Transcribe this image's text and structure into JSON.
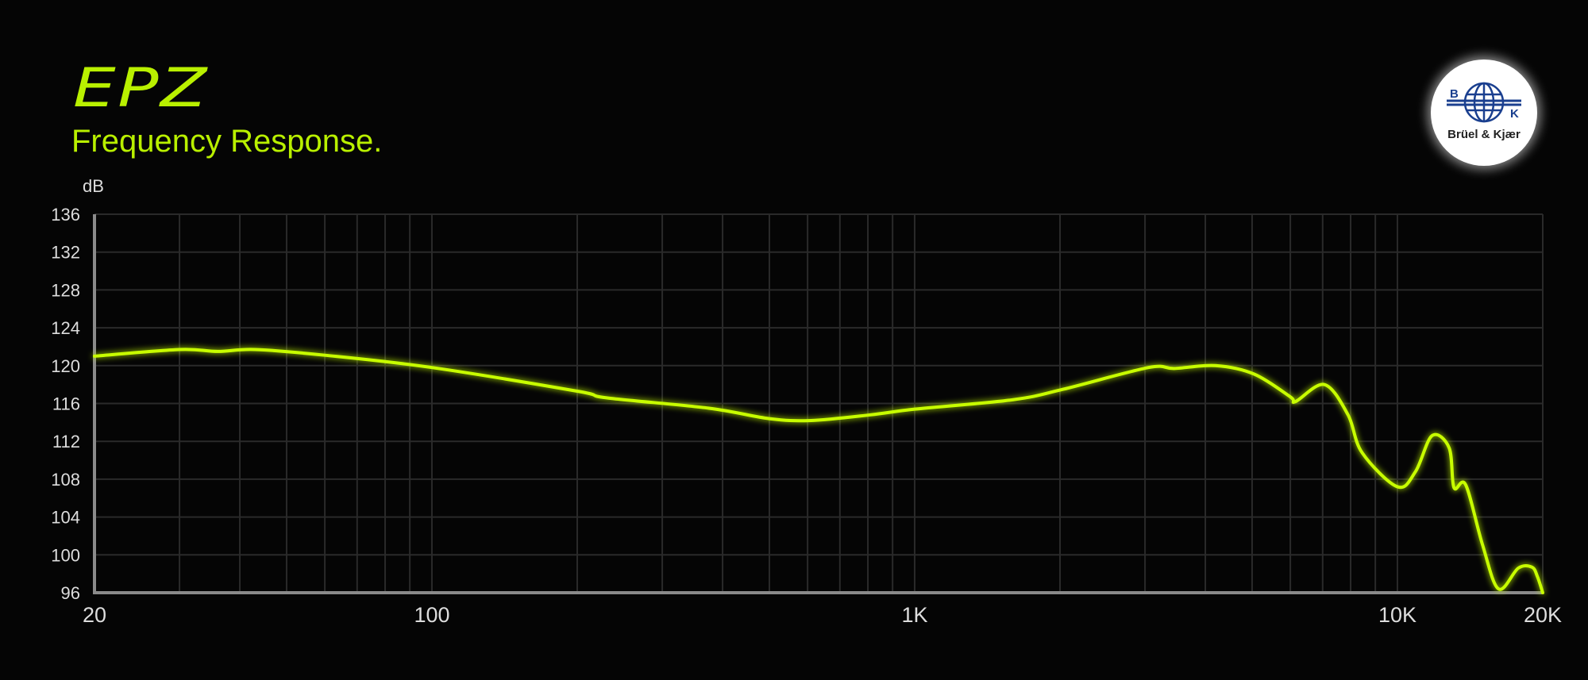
{
  "brand": "EPZ",
  "logo_text": "Brüel & Kjær",
  "chart_data": {
    "type": "line",
    "title": "Frequency Response.",
    "ylabel": "dB",
    "xlabel": "",
    "xscale": "log",
    "xlim": [
      20,
      20000
    ],
    "ylim": [
      96,
      136
    ],
    "yticks": [
      96,
      100,
      104,
      108,
      112,
      116,
      120,
      124,
      128,
      132,
      136
    ],
    "xticks": [
      {
        "v": 20,
        "label": "20"
      },
      {
        "v": 100,
        "label": "100"
      },
      {
        "v": 1000,
        "label": "1K"
      },
      {
        "v": 10000,
        "label": "10K"
      },
      {
        "v": 20000,
        "label": "20K"
      }
    ],
    "grid": true,
    "line_color": "#c8ff00",
    "series": [
      {
        "x": [
          20,
          30,
          36,
          43,
          60,
          100,
          200,
          230,
          375,
          500,
          610,
          810,
          1000,
          1600,
          2030,
          3050,
          3450,
          4200,
          5050,
          6000,
          6150,
          7060,
          7900,
          8450,
          10000,
          10900,
          11800,
          12800,
          13100,
          13850,
          15000,
          16200,
          17800,
          19000,
          19500,
          20000
        ],
        "y": [
          121.0,
          121.7,
          121.5,
          121.7,
          121.1,
          119.8,
          117.3,
          116.6,
          115.5,
          114.4,
          114.2,
          114.8,
          115.4,
          116.4,
          117.5,
          119.8,
          119.7,
          120.0,
          119.1,
          116.7,
          116.2,
          118.0,
          114.8,
          110.8,
          107.2,
          108.8,
          112.6,
          111.3,
          107.1,
          107.4,
          101.1,
          96.4,
          98.6,
          98.7,
          97.7,
          96.0
        ]
      }
    ]
  }
}
